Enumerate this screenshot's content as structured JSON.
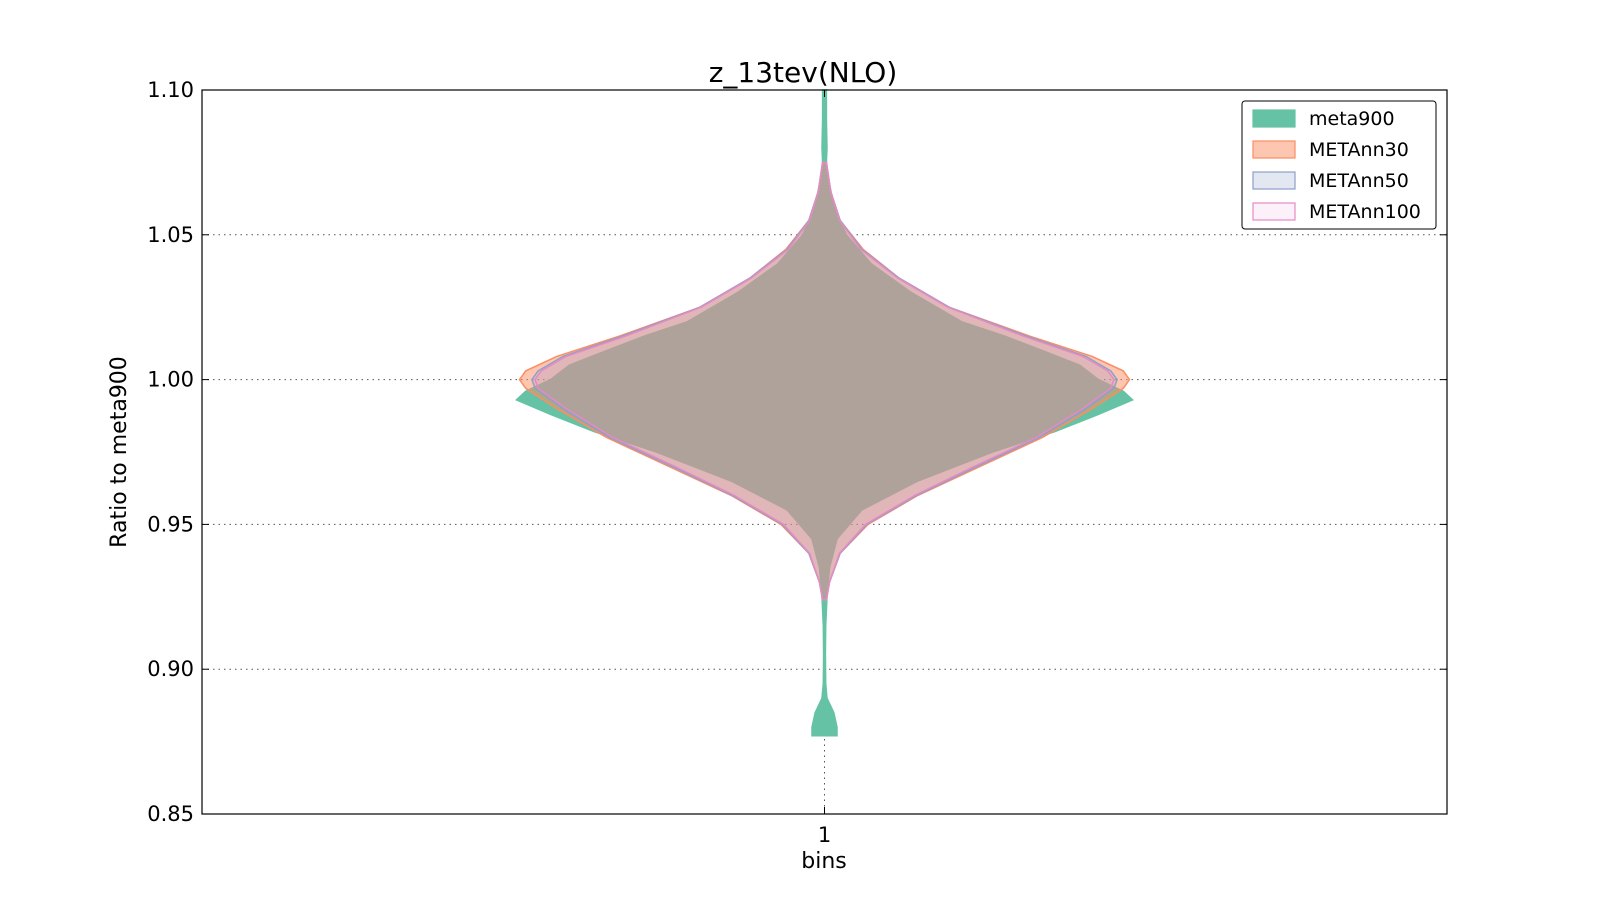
{
  "chart_data": {
    "type": "violin",
    "title": "z_13tev(NLO)",
    "xlabel": "bins",
    "ylabel": "Ratio to meta900",
    "categories": [
      "1"
    ],
    "xlim": [
      0.5,
      1.5
    ],
    "ylim": [
      0.85,
      1.1
    ],
    "yticks": [
      0.85,
      0.9,
      0.95,
      1.0,
      1.05,
      1.1
    ],
    "ytick_labels": [
      "0.85",
      "0.90",
      "0.95",
      "1.00",
      "1.05",
      "1.10"
    ],
    "grid": true,
    "legend_position": "top-right",
    "series": [
      {
        "name": "meta900",
        "fill": "#66c2a5",
        "edge": "#66c2a5",
        "fill_opacity": 1.0,
        "ymin": 0.877,
        "ymax": 1.1,
        "profile": [
          [
            0.877,
            0.02
          ],
          [
            0.88,
            0.02
          ],
          [
            0.885,
            0.015
          ],
          [
            0.89,
            0.004
          ],
          [
            0.895,
            0.002
          ],
          [
            0.905,
            0.0015
          ],
          [
            0.915,
            0.002
          ],
          [
            0.925,
            0.004
          ],
          [
            0.935,
            0.008
          ],
          [
            0.945,
            0.02
          ],
          [
            0.955,
            0.06
          ],
          [
            0.965,
            0.15
          ],
          [
            0.975,
            0.27
          ],
          [
            0.982,
            0.37
          ],
          [
            0.988,
            0.44
          ],
          [
            0.993,
            0.495
          ],
          [
            0.996,
            0.48
          ],
          [
            1.0,
            0.44
          ],
          [
            1.005,
            0.41
          ],
          [
            1.01,
            0.35
          ],
          [
            1.015,
            0.29
          ],
          [
            1.02,
            0.22
          ],
          [
            1.03,
            0.14
          ],
          [
            1.04,
            0.075
          ],
          [
            1.05,
            0.035
          ],
          [
            1.06,
            0.015
          ],
          [
            1.07,
            0.006
          ],
          [
            1.075,
            0.003
          ],
          [
            1.08,
            0.004
          ],
          [
            1.09,
            0.003
          ],
          [
            1.1,
            0.003
          ]
        ]
      },
      {
        "name": "METAnn30",
        "fill": "#fc8d62",
        "edge": "#fc8d62",
        "fill_opacity": 0.5,
        "ymin": 0.924,
        "ymax": 1.075,
        "profile": [
          [
            0.924,
            0.003
          ],
          [
            0.93,
            0.008
          ],
          [
            0.94,
            0.025
          ],
          [
            0.95,
            0.07
          ],
          [
            0.96,
            0.15
          ],
          [
            0.97,
            0.25
          ],
          [
            0.98,
            0.35
          ],
          [
            0.99,
            0.43
          ],
          [
            0.997,
            0.48
          ],
          [
            1.0,
            0.49
          ],
          [
            1.003,
            0.48
          ],
          [
            1.008,
            0.43
          ],
          [
            1.015,
            0.33
          ],
          [
            1.025,
            0.2
          ],
          [
            1.035,
            0.12
          ],
          [
            1.045,
            0.062
          ],
          [
            1.055,
            0.025
          ],
          [
            1.065,
            0.01
          ],
          [
            1.075,
            0.003
          ]
        ]
      },
      {
        "name": "METAnn50",
        "fill": "#8da0cb",
        "edge": "#8da0cb",
        "fill_opacity": 0.25,
        "ymin": 0.924,
        "ymax": 1.075,
        "profile": [
          [
            0.924,
            0.003
          ],
          [
            0.93,
            0.008
          ],
          [
            0.94,
            0.025
          ],
          [
            0.95,
            0.068
          ],
          [
            0.96,
            0.148
          ],
          [
            0.97,
            0.245
          ],
          [
            0.98,
            0.345
          ],
          [
            0.99,
            0.42
          ],
          [
            0.997,
            0.465
          ],
          [
            1.0,
            0.47
          ],
          [
            1.003,
            0.46
          ],
          [
            1.008,
            0.42
          ],
          [
            1.015,
            0.325
          ],
          [
            1.025,
            0.2
          ],
          [
            1.035,
            0.12
          ],
          [
            1.045,
            0.06
          ],
          [
            1.055,
            0.025
          ],
          [
            1.065,
            0.01
          ],
          [
            1.075,
            0.003
          ]
        ]
      },
      {
        "name": "METAnn100",
        "fill": "#e78ac3",
        "edge": "#e78ac3",
        "fill_opacity": 0.12,
        "ymin": 0.924,
        "ymax": 1.075,
        "profile": [
          [
            0.924,
            0.003
          ],
          [
            0.93,
            0.008
          ],
          [
            0.94,
            0.024
          ],
          [
            0.95,
            0.066
          ],
          [
            0.96,
            0.145
          ],
          [
            0.97,
            0.24
          ],
          [
            0.98,
            0.34
          ],
          [
            0.99,
            0.415
          ],
          [
            0.997,
            0.46
          ],
          [
            1.0,
            0.465
          ],
          [
            1.003,
            0.455
          ],
          [
            1.008,
            0.415
          ],
          [
            1.015,
            0.32
          ],
          [
            1.025,
            0.198
          ],
          [
            1.035,
            0.118
          ],
          [
            1.045,
            0.058
          ],
          [
            1.055,
            0.024
          ],
          [
            1.065,
            0.01
          ],
          [
            1.075,
            0.003
          ]
        ]
      }
    ]
  }
}
